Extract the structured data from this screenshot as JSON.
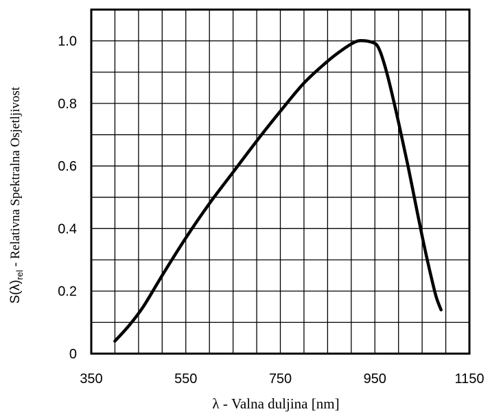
{
  "chart_data": {
    "type": "line",
    "title": "",
    "xlabel": "λ - Valna duljina [nm]",
    "ylabel": {
      "prefix": "S(λ)",
      "subscript": "rel",
      "suffix": " - Relativna Spektralna Osjetljivost"
    },
    "xlim": [
      350,
      1150
    ],
    "ylim": [
      0,
      1.1
    ],
    "x_ticks": [
      {
        "value": 350,
        "label": "350"
      },
      {
        "value": 550,
        "label": "550"
      },
      {
        "value": 750,
        "label": "750"
      },
      {
        "value": 950,
        "label": "950"
      },
      {
        "value": 1150,
        "label": "1150"
      }
    ],
    "y_ticks": [
      {
        "value": 0,
        "label": "0"
      },
      {
        "value": 0.2,
        "label": "0.2"
      },
      {
        "value": 0.4,
        "label": "0.4"
      },
      {
        "value": 0.6,
        "label": "0.6"
      },
      {
        "value": 0.8,
        "label": "0.8"
      },
      {
        "value": 1.0,
        "label": "1.0"
      }
    ],
    "x_grid_step": 50,
    "y_grid_step": 0.1,
    "grid": true,
    "series": [
      {
        "color": "#000000",
        "points": [
          [
            400,
            0.04
          ],
          [
            430,
            0.09
          ],
          [
            460,
            0.15
          ],
          [
            500,
            0.25
          ],
          [
            550,
            0.37
          ],
          [
            600,
            0.48
          ],
          [
            650,
            0.58
          ],
          [
            700,
            0.68
          ],
          [
            750,
            0.775
          ],
          [
            800,
            0.865
          ],
          [
            850,
            0.935
          ],
          [
            880,
            0.97
          ],
          [
            900,
            0.99
          ],
          [
            915,
            1.0
          ],
          [
            930,
            1.0
          ],
          [
            945,
            0.995
          ],
          [
            955,
            0.985
          ],
          [
            965,
            0.95
          ],
          [
            980,
            0.87
          ],
          [
            1000,
            0.74
          ],
          [
            1020,
            0.6
          ],
          [
            1040,
            0.45
          ],
          [
            1055,
            0.34
          ],
          [
            1070,
            0.24
          ],
          [
            1080,
            0.18
          ],
          [
            1090,
            0.14
          ]
        ]
      }
    ]
  }
}
